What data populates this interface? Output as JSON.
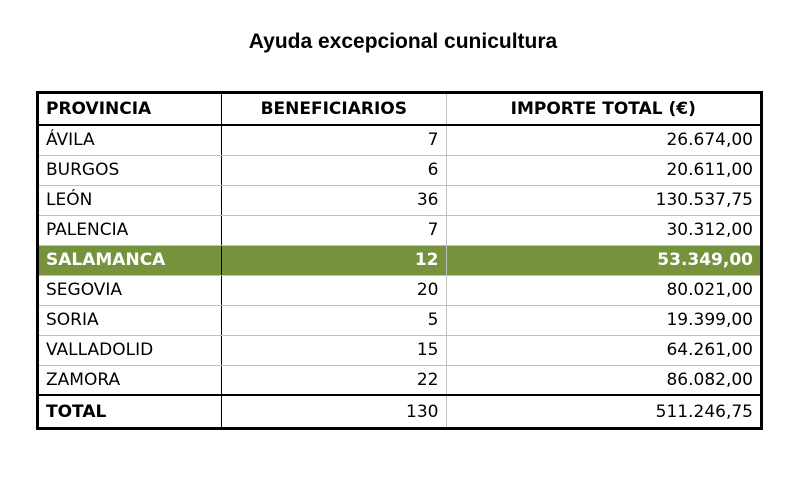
{
  "title": "Ayuda excepcional cunicultura",
  "table": {
    "headers": [
      "PROVINCIA",
      "BENEFICIARIOS",
      "IMPORTE TOTAL (€)"
    ],
    "rows": [
      [
        "ÁVILA",
        "7",
        "26.674,00"
      ],
      [
        "BURGOS",
        "6",
        "20.611,00"
      ],
      [
        "LEÓN",
        "36",
        "130.537,75"
      ],
      [
        "PALENCIA",
        "7",
        "30.312,00"
      ],
      [
        "SALAMANCA",
        "12",
        "53.349,00"
      ],
      [
        "SEGOVIA",
        "20",
        "80.021,00"
      ],
      [
        "SORIA",
        "5",
        "19.399,00"
      ],
      [
        "VALLADOLID",
        "15",
        "64.261,00"
      ],
      [
        "ZAMORA",
        "22",
        "86.082,00"
      ]
    ],
    "highlighted_row": "SALAMANCA",
    "highlight_color": "#76923c",
    "total": [
      "TOTAL",
      "130",
      "511.246,75"
    ]
  }
}
